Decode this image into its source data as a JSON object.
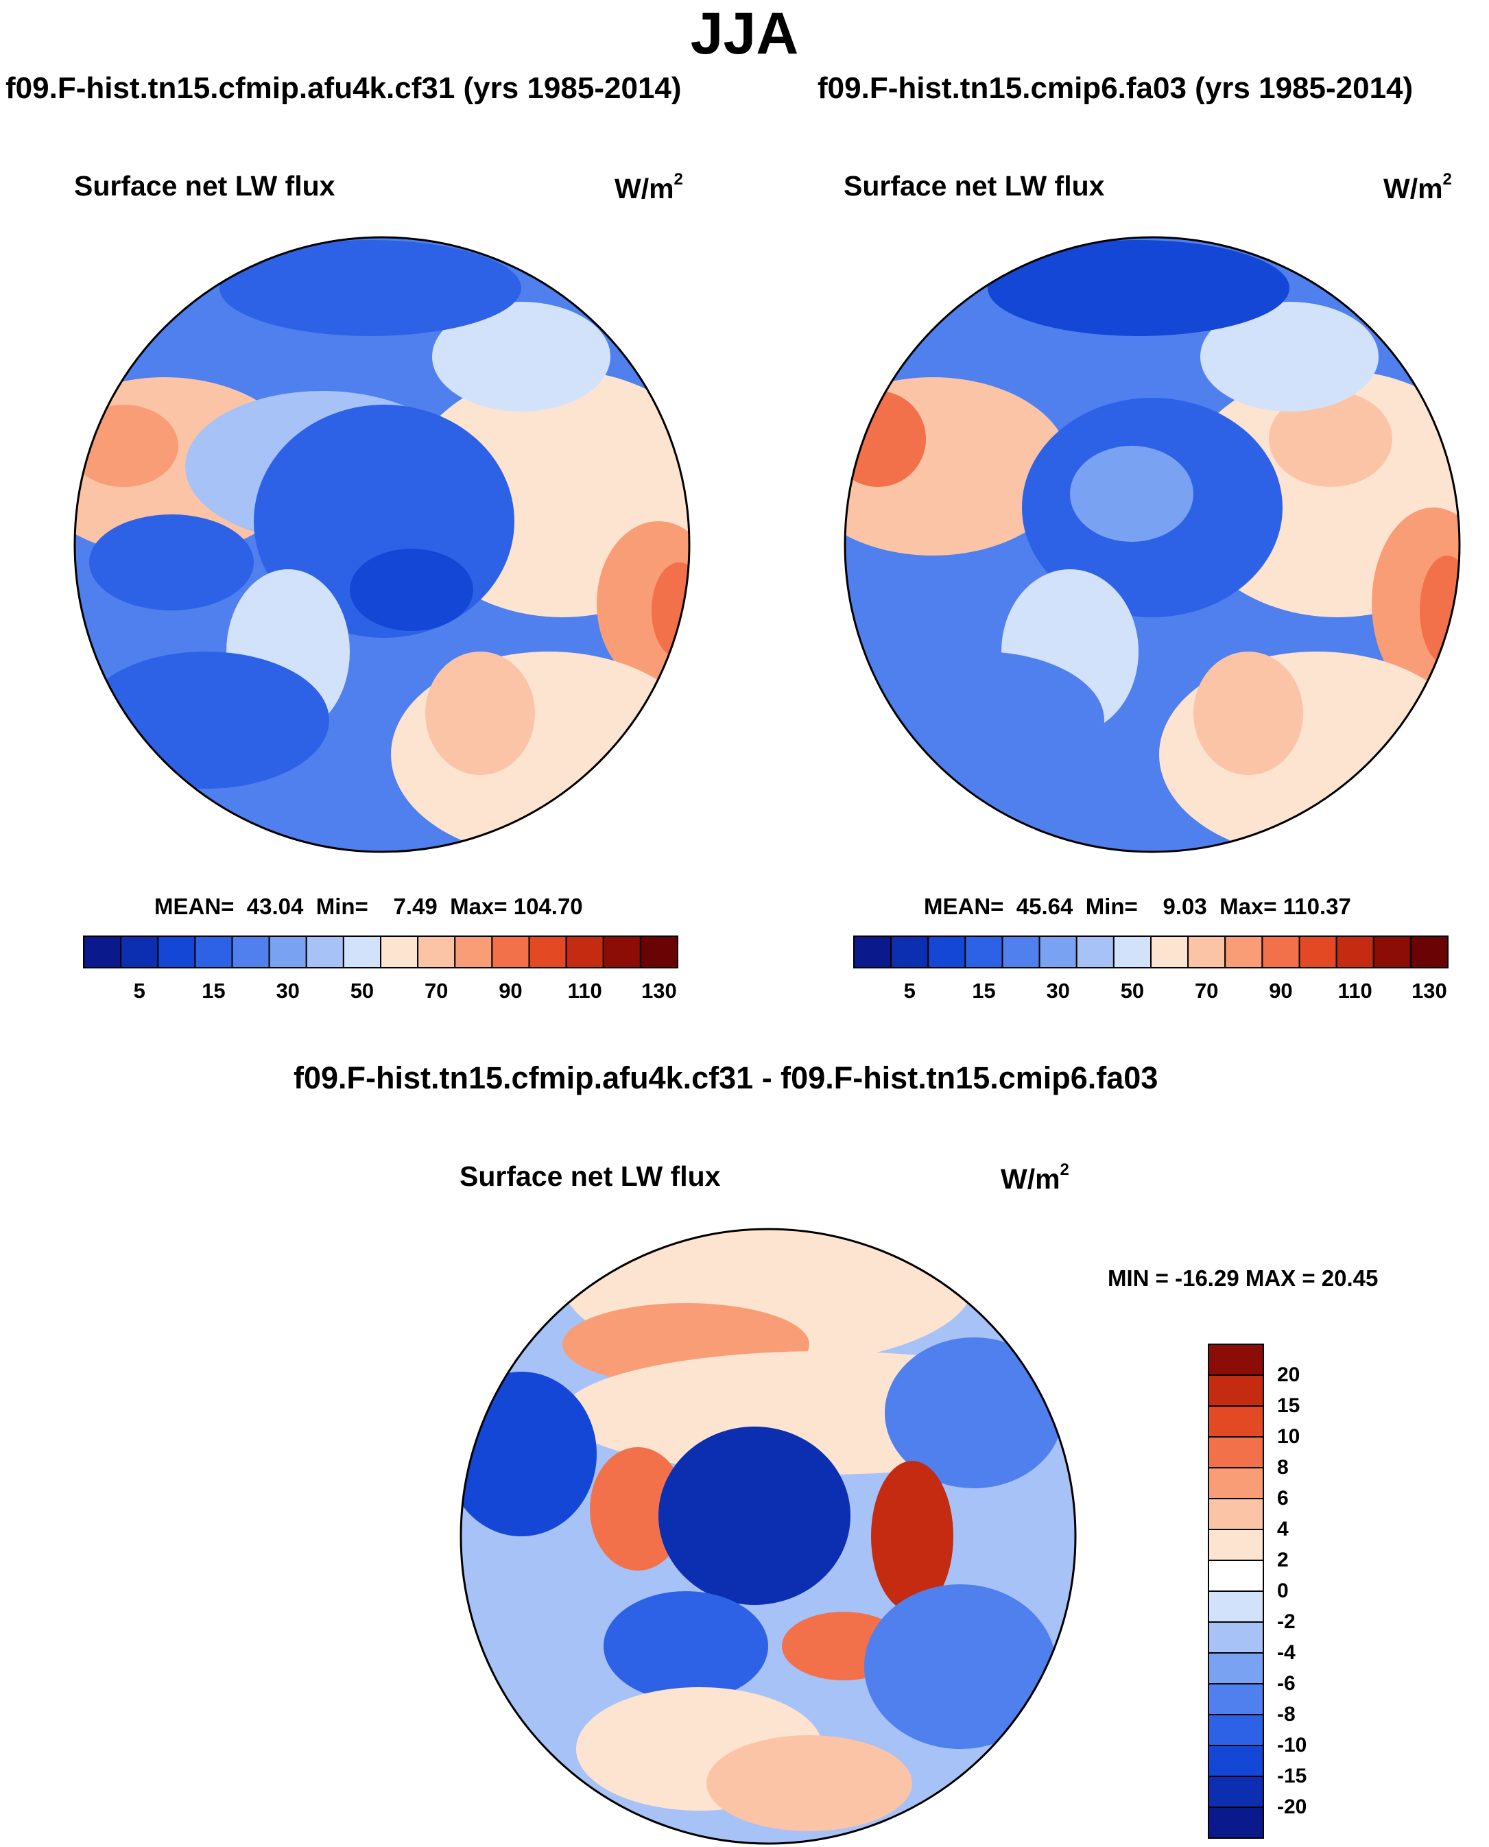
{
  "title": "JJA",
  "panels": [
    {
      "case_title": "f09.F-hist.tn15.cfmip.afu4k.cf31 (yrs 1985-2014)",
      "variable": "Surface net LW flux",
      "units_base": "W/m",
      "units_exp": "2",
      "stats": {
        "mean_label": "MEAN=",
        "mean": "43.04",
        "min_label": "Min=",
        "min": "7.49",
        "max_label": "Max=",
        "max": "104.70"
      }
    },
    {
      "case_title": "f09.F-hist.tn15.cmip6.fa03 (yrs 1985-2014)",
      "variable": "Surface net LW flux",
      "units_base": "W/m",
      "units_exp": "2",
      "stats": {
        "mean_label": "MEAN=",
        "mean": "45.64",
        "min_label": "Min=",
        "min": "9.03",
        "max_label": "Max=",
        "max": "110.37"
      }
    }
  ],
  "diff_panel": {
    "case_title": "f09.F-hist.tn15.cfmip.afu4k.cf31 - f09.F-hist.tn15.cmip6.fa03",
    "variable": "Surface net LW flux",
    "units_base": "W/m",
    "units_exp": "2",
    "minmax": "MIN = -16.29 MAX =  20.45"
  },
  "colorbar_abs": {
    "tick_labels": [
      "5",
      "15",
      "30",
      "50",
      "70",
      "90",
      "110",
      "130"
    ],
    "colors": [
      "#0a1a8c",
      "#0b2fb0",
      "#1447d6",
      "#2e62e6",
      "#4f80ee",
      "#7aa2f2",
      "#a6c2f6",
      "#d3e2fb",
      "#fde4d1",
      "#fbc4a6",
      "#f89d76",
      "#f2714a",
      "#e34a24",
      "#c42b10",
      "#8c0d05",
      "#6a0303"
    ]
  },
  "colorbar_diff": {
    "tick_labels": [
      "20",
      "15",
      "10",
      "8",
      "6",
      "4",
      "2",
      "0",
      "-2",
      "-4",
      "-6",
      "-8",
      "-10",
      "-15",
      "-20"
    ],
    "colors": [
      "#8c0d05",
      "#c42b10",
      "#e34a24",
      "#f2714a",
      "#f89d76",
      "#fbc4a6",
      "#fde4d1",
      "#ffffff",
      "#d3e2fb",
      "#a6c2f6",
      "#7aa2f2",
      "#4f80ee",
      "#2e62e6",
      "#1447d6",
      "#0b2fb0",
      "#0a1a8c"
    ]
  }
}
